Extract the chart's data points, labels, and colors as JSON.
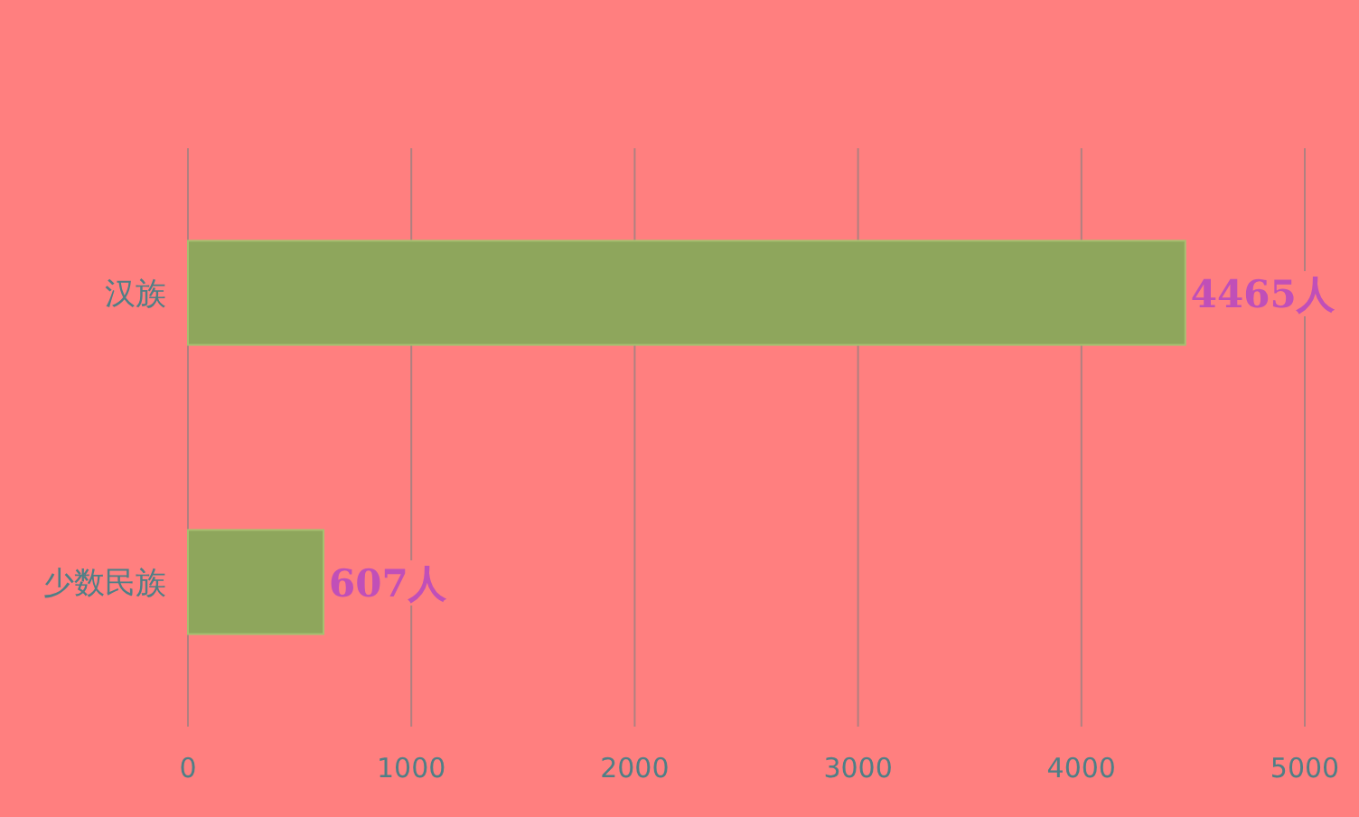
{
  "chart_data": {
    "type": "bar",
    "orientation": "horizontal",
    "categories": [
      "汉族",
      "少数民族"
    ],
    "values": [
      4465,
      607
    ],
    "value_labels": [
      "4465人",
      "607人"
    ],
    "color": "#8ea65c",
    "xlim": [
      0,
      5000
    ],
    "xticks": [
      0,
      1000,
      2000,
      3000,
      4000,
      5000
    ],
    "grid": "x"
  }
}
